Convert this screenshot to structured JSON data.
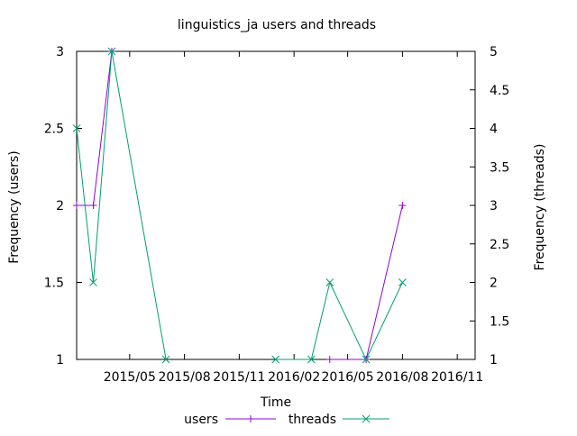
{
  "chart_data": {
    "type": "line",
    "title": "linguistics_ja users and threads",
    "xlabel": "Time",
    "ylabel": "Frequency (users)",
    "y2label": "Frequency (threads)",
    "xlim": [
      "2015-02-01",
      "2016-12-01"
    ],
    "ylim": [
      1,
      3
    ],
    "y2lim": [
      1,
      5
    ],
    "x_ticks": [
      "2015/05",
      "2015/08",
      "2015/11",
      "2016/02",
      "2016/05",
      "2016/08",
      "2016/11"
    ],
    "y_ticks": [
      "1",
      "1.5",
      "2",
      "2.5",
      "3"
    ],
    "y2_ticks": [
      "1",
      "1.5",
      "2",
      "2.5",
      "3",
      "3.5",
      "4",
      "4.5",
      "5"
    ],
    "grid": false,
    "legend_position": "bottom",
    "series": [
      {
        "name": "users",
        "axis": "left",
        "color": "#9400d3",
        "marker": "plus",
        "points": [
          {
            "x": "2015-02-01",
            "y": 2
          },
          {
            "x": "2015-03-01",
            "y": 2
          },
          {
            "x": "2015-04-01",
            "y": 3
          }
        ],
        "points_2": [
          {
            "x": "2016-04-01",
            "y": 1
          },
          {
            "x": "2016-06-01",
            "y": 1
          },
          {
            "x": "2016-08-01",
            "y": 2
          }
        ]
      },
      {
        "name": "threads",
        "axis": "right",
        "color": "#009e73",
        "marker": "cross",
        "points": [
          {
            "x": "2015-02-01",
            "y": 4
          },
          {
            "x": "2015-03-01",
            "y": 2
          },
          {
            "x": "2015-04-01",
            "y": 5
          },
          {
            "x": "2015-07-01",
            "y": 1
          }
        ],
        "points_2": [
          {
            "x": "2016-01-01",
            "y": 1
          },
          {
            "x": "2016-03-01",
            "y": 1
          },
          {
            "x": "2016-04-01",
            "y": 2
          },
          {
            "x": "2016-06-01",
            "y": 1
          },
          {
            "x": "2016-08-01",
            "y": 2
          }
        ]
      }
    ]
  }
}
